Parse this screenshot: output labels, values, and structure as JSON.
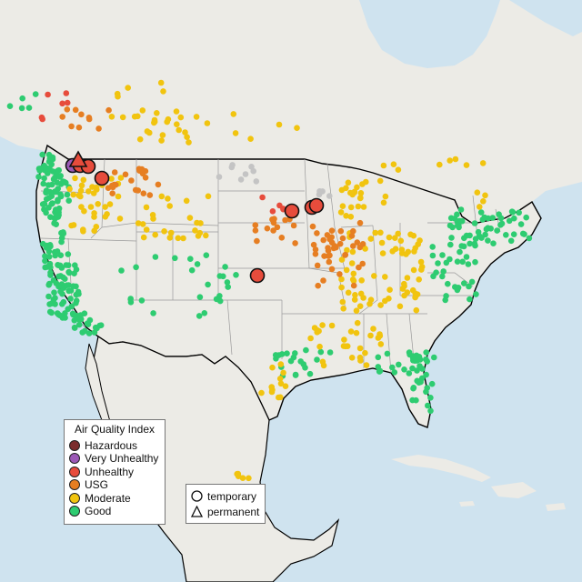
{
  "legend": {
    "title": "Air Quality Index",
    "categories": [
      {
        "label": "Hazardous",
        "color": "#7b2d2d"
      },
      {
        "label": "Very Unhealthy",
        "color": "#9b59b6"
      },
      {
        "label": "Unhealthy",
        "color": "#e74c3c"
      },
      {
        "label": "USG",
        "color": "#e67e22"
      },
      {
        "label": "Moderate",
        "color": "#f1c40f"
      },
      {
        "label": "Good",
        "color": "#2ecc71"
      }
    ],
    "no_data_color": "#c4c4c4"
  },
  "monitor_types": {
    "temporary": "temporary",
    "permanent": "permanent"
  },
  "basemap": {
    "land_color": "#ecebe6",
    "water_color": "#cfe3ef",
    "border_color": "#000000",
    "state_line_color": "#9a9a9a"
  }
}
